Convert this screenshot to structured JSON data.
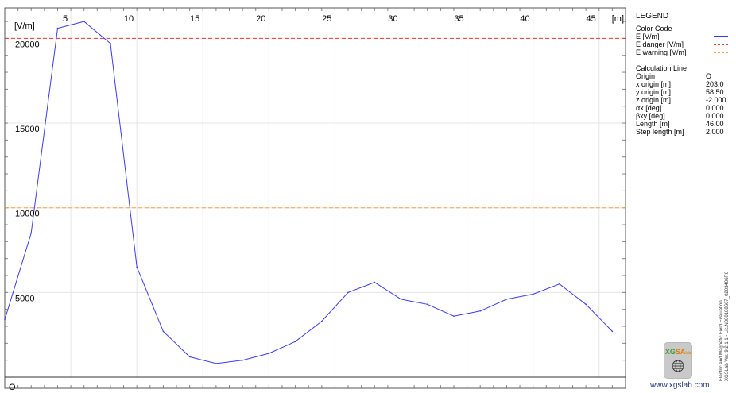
{
  "chart_data": {
    "type": "line",
    "y_unit": "[V/m]",
    "x_unit": "[m]",
    "x_ticks": [
      5,
      10,
      15,
      20,
      25,
      30,
      35,
      40,
      45
    ],
    "y_ticks": [
      5000,
      10000,
      15000,
      20000
    ],
    "xlim": [
      0,
      47
    ],
    "ylim": [
      0,
      21800
    ],
    "grid": true,
    "series": [
      {
        "name": "E [V/m]",
        "color": "#3b3bf0",
        "x": [
          0,
          2,
          4,
          6,
          8,
          10,
          12,
          14,
          16,
          18,
          20,
          22,
          24,
          26,
          28,
          30,
          32,
          34,
          36,
          38,
          40,
          42,
          44,
          46
        ],
        "y": [
          3400,
          8500,
          20600,
          21000,
          19700,
          6500,
          2700,
          1200,
          800,
          1000,
          1400,
          2100,
          3300,
          5000,
          5600,
          4600,
          4300,
          3600,
          3900,
          4600,
          4900,
          5500,
          4300,
          2700
        ]
      }
    ],
    "reference_lines": [
      {
        "name": "E danger [V/m]",
        "value": 20000,
        "color": "#e23a3a"
      },
      {
        "name": "E warning [V/m]",
        "value": 10000,
        "color": "#f2a64a"
      }
    ],
    "origin_label": "O"
  },
  "legend": {
    "title": "LEGEND",
    "color_code_title": "Color Code",
    "color_items": [
      {
        "label": "E [V/m]",
        "color": "#3b3bf0",
        "style": "solid"
      },
      {
        "label": "E danger [V/m]",
        "color": "#e23a3a",
        "style": "dashed"
      },
      {
        "label": "E warning [V/m]",
        "color": "#f2a64a",
        "style": "dashed"
      }
    ],
    "calc_title": "Calculation Line",
    "calc_items": [
      {
        "label": "Origin",
        "value": "O"
      },
      {
        "label": "x origin [m]",
        "value": "203.0"
      },
      {
        "label": "y origin [m]",
        "value": "58.50"
      },
      {
        "label": "z origin [m]",
        "value": "-2.000"
      },
      {
        "label": "αx [deg]",
        "value": "0.000"
      },
      {
        "label": "βxy [deg]",
        "value": "0.000"
      },
      {
        "label": "Length [m]",
        "value": "46.00"
      },
      {
        "label": "Step length [m]",
        "value": "2.000"
      }
    ]
  },
  "branding": {
    "logo_text_1": "XG",
    "logo_text_2": "SA",
    "logo_text_3": "lab",
    "website": "www.xgslab.com",
    "vertical_line_1": "Electric and Magnetic Field Evaluation",
    "vertical_line_2": "XGSLab Ver. 9.2.1.1 - Lic.N000188607_0203406R0"
  }
}
